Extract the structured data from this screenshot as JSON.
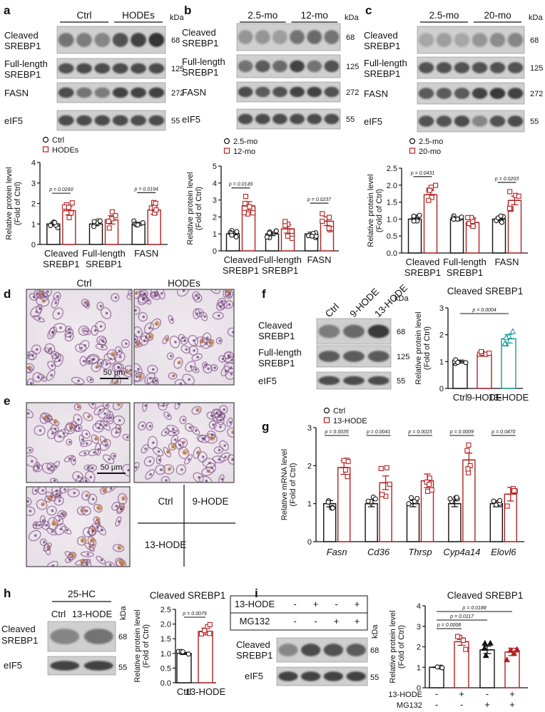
{
  "panels": {
    "a": {
      "label": "a",
      "groups": [
        "Ctrl",
        "HODEs"
      ],
      "kda_label": "kDa",
      "blot_rows": [
        {
          "name": [
            "Cleaved",
            "SREBP1"
          ],
          "kda": "68"
        },
        {
          "name": [
            "Full-length",
            "SREBP1"
          ],
          "kda": "125"
        },
        {
          "name": [
            "FASN"
          ],
          "kda": "272"
        },
        {
          "name": [
            "eIF5"
          ],
          "kda": "55"
        }
      ],
      "legend": [
        "Ctrl",
        "HODEs"
      ],
      "chart": {
        "ylabel": [
          "Relative protein level",
          "(Fold of Ctrl)"
        ],
        "yticks": [
          "0",
          "1",
          "2",
          "3",
          "4"
        ],
        "ylim": [
          0,
          4
        ],
        "categories": [
          [
            "Cleaved",
            "SREBP1"
          ],
          [
            "Full-length",
            "SREBP1"
          ],
          [
            "FASN"
          ]
        ],
        "series": [
          {
            "name": "Ctrl",
            "values": [
              1.0,
              1.0,
              1.0
            ]
          },
          {
            "name": "HODEs",
            "values": [
              1.65,
              1.2,
              1.68
            ]
          }
        ],
        "pvalues": [
          {
            "text": "p = 0.0260",
            "cat": 0
          },
          {
            "text": "p = 0.0194",
            "cat": 2
          }
        ]
      }
    },
    "b": {
      "label": "b",
      "groups": [
        "2.5-mo",
        "12-mo"
      ],
      "kda_label": "kDa",
      "blot_rows": [
        {
          "name": [
            "Cleaved",
            "SREBP1"
          ],
          "kda": "68"
        },
        {
          "name": [
            "Full-length",
            "SREBP1"
          ],
          "kda": "125"
        },
        {
          "name": [
            "FASN"
          ],
          "kda": "272"
        },
        {
          "name": [
            "eIF5"
          ],
          "kda": "55"
        }
      ],
      "legend": [
        "2.5-mo",
        "12-mo"
      ],
      "chart": {
        "ylabel": [
          "Relative protein level",
          "(Fold of Ctrl)"
        ],
        "yticks": [
          "0",
          "1",
          "2",
          "3",
          "4",
          "5"
        ],
        "ylim": [
          0,
          5
        ],
        "categories": [
          [
            "Cleaved",
            "SREBP1"
          ],
          [
            "Full-length",
            "SREBP1"
          ],
          [
            "FASN"
          ]
        ],
        "series": [
          {
            "name": "2.5-mo",
            "values": [
              1.0,
              1.0,
              1.0
            ]
          },
          {
            "name": "12-mo",
            "values": [
              2.65,
              1.3,
              1.75
            ]
          }
        ],
        "pvalues": [
          {
            "text": "p = 0.0149",
            "cat": 0
          },
          {
            "text": "p = 0.0237",
            "cat": 2
          }
        ]
      }
    },
    "c": {
      "label": "c",
      "groups": [
        "2.5-mo",
        "20-mo"
      ],
      "kda_label": "kDa",
      "blot_rows": [
        {
          "name": [
            "Cleaved",
            "SREBP1"
          ],
          "kda": "68"
        },
        {
          "name": [
            "Full-length",
            "SREBP1"
          ],
          "kda": "125"
        },
        {
          "name": [
            "FASN"
          ],
          "kda": "272"
        },
        {
          "name": [
            "eIF5"
          ],
          "kda": "55"
        }
      ],
      "legend": [
        "2.5-mo",
        "20-mo"
      ],
      "chart": {
        "ylabel": [
          "Relative protein level",
          "(Fold of Ctrl)"
        ],
        "yticks": [
          "0.0",
          "0.5",
          "1.0",
          "1.5",
          "2.0",
          "2.5"
        ],
        "ylim": [
          0,
          2.5
        ],
        "categories": [
          [
            "Cleaved",
            "SREBP1"
          ],
          [
            "Full-length",
            "SREBP1"
          ],
          [
            "FASN"
          ]
        ],
        "series": [
          {
            "name": "2.5-mo",
            "values": [
              1.0,
              1.0,
              1.0
            ]
          },
          {
            "name": "20-mo",
            "values": [
              1.72,
              0.9,
              1.55
            ]
          }
        ],
        "pvalues": [
          {
            "text": "p = 0.0431",
            "cat": 0
          },
          {
            "text": "p = 0.0203",
            "cat": 2
          }
        ]
      }
    },
    "d": {
      "label": "d",
      "captions": [
        "Ctrl",
        "HODEs"
      ],
      "scale": "50 μm"
    },
    "e": {
      "label": "e",
      "scale": "50 μm",
      "grid_labels": [
        "Ctrl",
        "9-HODE",
        "13-HODE"
      ]
    },
    "f": {
      "label": "f",
      "lanes": [
        "Ctrl",
        "9-HODE",
        "13-HODE"
      ],
      "kda_label": "kDa",
      "blot_rows": [
        {
          "name": [
            "Cleaved",
            "SREBP1"
          ],
          "kda": "68"
        },
        {
          "name": [
            "Full-length",
            "SREBP1"
          ],
          "kda": "125"
        },
        {
          "name": [
            "eIF5"
          ],
          "kda": "55"
        }
      ],
      "chart": {
        "title": "Cleaved SREBP1",
        "ylabel": [
          "Relative protein level",
          "(Fold of Ctrl)"
        ],
        "yticks": [
          "0",
          "1",
          "2",
          "3"
        ],
        "ylim": [
          0,
          3
        ],
        "categories": [
          "Ctrl",
          "9-HODE",
          "13-HODE"
        ],
        "values": [
          1.0,
          1.25,
          1.85
        ],
        "pvalue": "p = 0.0004"
      }
    },
    "g": {
      "label": "g",
      "legend": [
        "Ctrl",
        "13-HODE"
      ],
      "chart": {
        "ylabel": [
          "Relative mRNA level",
          "(Fold of Ctrl)"
        ],
        "yticks": [
          "0",
          "1",
          "2",
          "3"
        ],
        "ylim": [
          0,
          3
        ],
        "categories": [
          "Fasn",
          "Cd36",
          "Thrsp",
          "Cyp4a14",
          "Elovl6"
        ],
        "series": [
          {
            "name": "Ctrl",
            "values": [
              1.0,
              1.0,
              1.0,
              1.0,
              1.0
            ]
          },
          {
            "name": "13-HODE",
            "values": [
              1.95,
              1.55,
              1.6,
              2.15,
              1.25
            ]
          }
        ],
        "pvalues": [
          "p = 0.0035",
          "p = 0.0041",
          "p = 0.0015",
          "p = 0.0009",
          "p = 0.0470"
        ]
      }
    },
    "h": {
      "label": "h",
      "treatment": "25-HC",
      "lanes": [
        "Ctrl",
        "13-HODE"
      ],
      "kda_label": "kDa",
      "blot_rows": [
        {
          "name": [
            "Cleaved",
            "SREBP1"
          ],
          "kda": "68"
        },
        {
          "name": [
            "eIF5"
          ],
          "kda": "55"
        }
      ],
      "chart": {
        "title": "Cleaved SREBP1",
        "ylabel": [
          "Relative protein level",
          "(Fold of Ctrl)"
        ],
        "yticks": [
          "0.0",
          "0.5",
          "1.0",
          "1.5",
          "2.0",
          "2.5"
        ],
        "ylim": [
          0,
          2.5
        ],
        "categories": [
          "Ctrl",
          "13-HODE"
        ],
        "values": [
          1.0,
          1.75
        ],
        "pvalue": "p = 0.0079"
      }
    },
    "i": {
      "label": "i",
      "matrix_rows": [
        {
          "name": "13-HODE",
          "signs": [
            "-",
            "+",
            "-",
            "+"
          ]
        },
        {
          "name": "MG132",
          "signs": [
            "-",
            "-",
            "+",
            "+"
          ]
        }
      ],
      "kda_label": "kDa",
      "blot_rows": [
        {
          "name": [
            "Cleaved",
            "SREBP1"
          ],
          "kda": "68"
        },
        {
          "name": [
            "eIF5"
          ],
          "kda": "55"
        }
      ],
      "chart": {
        "title": "Cleaved SREBP1",
        "ylabel": [
          "Relative protein level",
          "(Fold of Ctrl)"
        ],
        "yticks": [
          "0",
          "1",
          "2",
          "3",
          "4"
        ],
        "ylim": [
          0,
          4
        ],
        "values": [
          1.0,
          2.25,
          1.85,
          1.75
        ],
        "pvalues": [
          "p = 0.0188",
          "p = 0.0117",
          "p = 0.0008"
        ],
        "row_labels": [
          {
            "name": "13-HODE",
            "signs": [
              "-",
              "+",
              "-",
              "+"
            ]
          },
          {
            "name": "MG132",
            "signs": [
              "-",
              "-",
              "+",
              "+"
            ]
          }
        ]
      }
    }
  },
  "colors": {
    "ctrl": "#111111",
    "treated": "#b22222",
    "teal": "#1a9a9a",
    "blot_bg": "#cfcfcf",
    "band": "#2a2a2a"
  }
}
